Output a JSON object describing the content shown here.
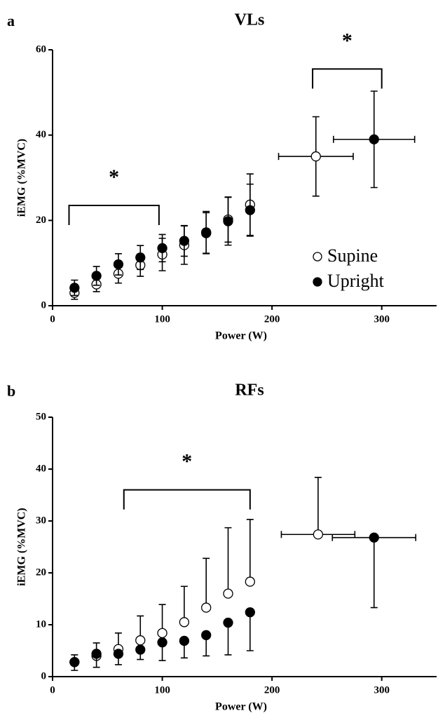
{
  "chart_data": [
    {
      "type": "scatter",
      "panel_label": "a",
      "title": "VLs",
      "x_label": "Power (W)",
      "y_label": "iEMG (%MVC)",
      "xlim": [
        0,
        350
      ],
      "xticks": [
        0,
        100,
        200,
        300
      ],
      "ylim": [
        0,
        60
      ],
      "yticks": [
        0,
        20,
        40,
        60
      ],
      "legend": "lower right",
      "series": [
        {
          "name": "Supine",
          "color": "#ffffff",
          "x": [
            20,
            40,
            60,
            80,
            100,
            120,
            140,
            160,
            180,
            240
          ],
          "values": [
            3,
            5,
            7.5,
            9.5,
            12,
            14.2,
            17.2,
            20.2,
            23.7,
            35
          ],
          "errors": [
            1.5,
            1.7,
            2.2,
            2.6,
            3.8,
            4.5,
            4.9,
            5.3,
            7.2,
            9.3
          ],
          "error_direction": "both",
          "x_errors": [
            null,
            null,
            null,
            null,
            null,
            null,
            null,
            null,
            null,
            34
          ]
        },
        {
          "name": "Upright",
          "color": "#000000",
          "x": [
            20,
            40,
            60,
            80,
            100,
            120,
            140,
            160,
            180,
            293
          ],
          "values": [
            4.2,
            7,
            9.7,
            11.3,
            13.5,
            15.2,
            17,
            19.8,
            22.4,
            39
          ],
          "errors": [
            1.8,
            2.2,
            2.5,
            2.8,
            3.2,
            3.6,
            4.8,
            5.6,
            6.1,
            11.3
          ],
          "error_direction": "both",
          "x_errors": [
            null,
            null,
            null,
            null,
            null,
            null,
            null,
            null,
            null,
            37
          ]
        }
      ],
      "annotations": [
        {
          "text": "*",
          "x1": 15,
          "x2": 97,
          "y": 23.5
        },
        {
          "text": "*",
          "x1": 237,
          "x2": 300,
          "y": 55.5
        }
      ]
    },
    {
      "type": "scatter",
      "panel_label": "b",
      "title": "RFs",
      "x_label": "Power (W)",
      "y_label": "iEMG (%MVC)",
      "xlim": [
        0,
        350
      ],
      "xticks": [
        0,
        100,
        200,
        300
      ],
      "ylim": [
        0,
        50
      ],
      "yticks": [
        0,
        10,
        20,
        30,
        40,
        50
      ],
      "series": [
        {
          "name": "Supine",
          "color": "#ffffff",
          "x": [
            20,
            40,
            60,
            80,
            100,
            120,
            140,
            160,
            180,
            242
          ],
          "values": [
            2.8,
            4,
            5.3,
            7,
            8.4,
            10.5,
            13.3,
            16,
            18.3,
            27.4
          ],
          "errors": [
            1.4,
            2.5,
            3.1,
            4.7,
            5.5,
            6.9,
            9.5,
            12.7,
            12,
            11
          ],
          "error_direction": "up",
          "x_errors": [
            null,
            null,
            null,
            null,
            null,
            null,
            null,
            null,
            null,
            33.5
          ]
        },
        {
          "name": "Upright",
          "color": "#000000",
          "x": [
            20,
            40,
            60,
            80,
            100,
            120,
            140,
            160,
            180,
            293
          ],
          "values": [
            2.8,
            4.4,
            4.4,
            5.2,
            6.6,
            6.9,
            8,
            10.4,
            12.4,
            26.8
          ],
          "errors": [
            1.6,
            2.6,
            2.1,
            1.9,
            3.5,
            3.3,
            4,
            6.2,
            7.4,
            13.5
          ],
          "error_direction": "down",
          "x_errors": [
            null,
            null,
            null,
            null,
            null,
            null,
            null,
            null,
            null,
            38
          ]
        }
      ],
      "annotations": [
        {
          "text": "*",
          "x1": 65,
          "x2": 180,
          "y": 36
        }
      ]
    }
  ]
}
